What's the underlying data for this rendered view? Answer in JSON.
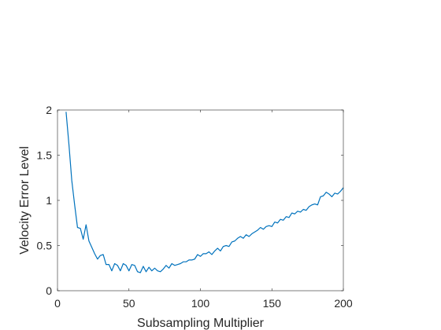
{
  "chart_data": {
    "type": "line",
    "title": "",
    "xlabel": "Subsampling Multiplier",
    "ylabel": "Velocity Error Level",
    "xlim": [
      0,
      200
    ],
    "ylim": [
      0,
      2
    ],
    "xticks": [
      0,
      50,
      100,
      150,
      200
    ],
    "xtick_labels": [
      "0",
      "50",
      "100",
      "150",
      "200"
    ],
    "yticks": [
      0,
      0.5,
      1,
      1.5,
      2
    ],
    "ytick_labels": [
      "0",
      "0.5",
      "1",
      "1.5",
      "2"
    ],
    "grid": false,
    "legend": "none",
    "series": [
      {
        "color": "#0072BD",
        "x": [
          6,
          8,
          10,
          12,
          14,
          16,
          18,
          20,
          22,
          24,
          26,
          28,
          30,
          32,
          34,
          36,
          38,
          40,
          42,
          44,
          46,
          48,
          50,
          52,
          54,
          56,
          58,
          60,
          62,
          64,
          66,
          68,
          70,
          72,
          74,
          76,
          78,
          80,
          82,
          84,
          86,
          88,
          90,
          92,
          94,
          96,
          98,
          100,
          102,
          104,
          106,
          108,
          110,
          112,
          114,
          116,
          118,
          120,
          122,
          124,
          126,
          128,
          130,
          132,
          134,
          136,
          138,
          140,
          142,
          144,
          146,
          148,
          150,
          152,
          154,
          156,
          158,
          160,
          162,
          164,
          166,
          168,
          170,
          172,
          174,
          176,
          178,
          180,
          182,
          184,
          186,
          188,
          190,
          192,
          194,
          196,
          198,
          200
        ],
        "y": [
          1.98,
          1.62,
          1.22,
          0.95,
          0.7,
          0.69,
          0.57,
          0.73,
          0.55,
          0.48,
          0.41,
          0.35,
          0.39,
          0.4,
          0.29,
          0.29,
          0.22,
          0.3,
          0.28,
          0.22,
          0.3,
          0.28,
          0.22,
          0.29,
          0.28,
          0.21,
          0.2,
          0.27,
          0.21,
          0.26,
          0.22,
          0.25,
          0.22,
          0.21,
          0.24,
          0.28,
          0.25,
          0.3,
          0.28,
          0.29,
          0.3,
          0.32,
          0.32,
          0.34,
          0.34,
          0.35,
          0.4,
          0.38,
          0.41,
          0.41,
          0.43,
          0.4,
          0.44,
          0.47,
          0.44,
          0.49,
          0.5,
          0.49,
          0.54,
          0.55,
          0.58,
          0.6,
          0.58,
          0.62,
          0.6,
          0.63,
          0.65,
          0.67,
          0.7,
          0.68,
          0.71,
          0.72,
          0.71,
          0.76,
          0.75,
          0.79,
          0.78,
          0.82,
          0.81,
          0.86,
          0.85,
          0.88,
          0.87,
          0.9,
          0.89,
          0.93,
          0.95,
          0.96,
          0.95,
          1.04,
          1.05,
          1.09,
          1.07,
          1.04,
          1.08,
          1.07,
          1.1,
          1.14
        ]
      }
    ]
  }
}
